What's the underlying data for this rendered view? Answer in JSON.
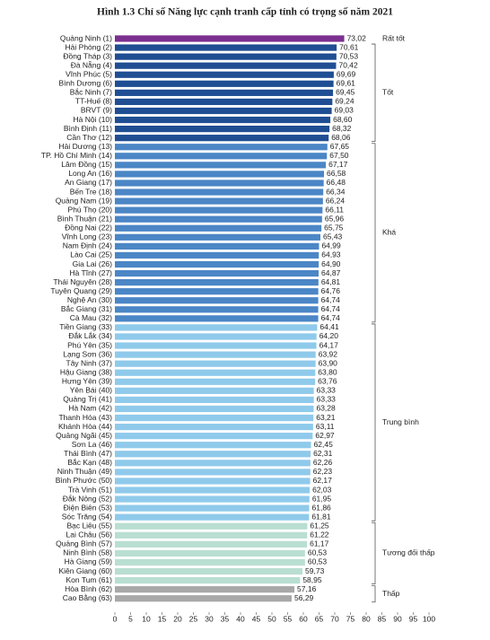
{
  "chart_data": {
    "type": "bar",
    "orientation": "horizontal",
    "title": "Hình 1.3 Chỉ số Năng lực cạnh tranh cấp tỉnh có trọng số năm 2021",
    "xlim": [
      0,
      100
    ],
    "xticks": [
      0,
      5,
      10,
      15,
      20,
      25,
      30,
      35,
      40,
      45,
      50,
      55,
      60,
      65,
      70,
      75,
      80,
      85,
      90,
      95,
      100
    ],
    "series": [
      {
        "name": "Rất tốt",
        "color": "#7b2f8f",
        "categories": [
          "Quảng Ninh (1)"
        ],
        "values": [
          73.02
        ],
        "value_labels": [
          "73,02"
        ]
      },
      {
        "name": "Tốt",
        "color": "#1f4e93",
        "categories": [
          "Hải Phòng (2)",
          "Đồng Tháp (3)",
          "Đà Nẵng (4)",
          "Vĩnh Phúc (5)",
          "Bình Dương (6)",
          "Bắc Ninh (7)",
          "TT-Huế (8)",
          "BRVT (9)",
          "Hà Nội (10)",
          "Bình Định (11)",
          "Cần Thơ (12)"
        ],
        "values": [
          70.61,
          70.53,
          70.42,
          69.69,
          69.61,
          69.45,
          69.24,
          69.03,
          68.6,
          68.32,
          68.06
        ],
        "value_labels": [
          "70,61",
          "70,53",
          "70,42",
          "69,69",
          "69,61",
          "69,45",
          "69,24",
          "69,03",
          "68,60",
          "68,32",
          "68,06"
        ]
      },
      {
        "name": "Khá",
        "color": "#4b86c6",
        "categories": [
          "Hải Dương (13)",
          "TP. Hồ Chí Minh (14)",
          "Lâm Đồng (15)",
          "Long An (16)",
          "An Giang (17)",
          "Bến Tre (18)",
          "Quảng Nam (19)",
          "Phú Thọ (20)",
          "Bình Thuận (21)",
          "Đồng Nai (22)",
          "Vĩnh Long (23)",
          "Nam Định (24)",
          "Lào Cai (25)",
          "Gia Lai (26)",
          "Hà Tĩnh (27)",
          "Thái Nguyên (28)",
          "Tuyên Quang (29)",
          "Nghệ An (30)",
          "Bắc Giang (31)",
          "Cà Mau (32)"
        ],
        "values": [
          67.65,
          67.5,
          67.17,
          66.58,
          66.48,
          66.34,
          66.24,
          66.11,
          65.96,
          65.75,
          65.43,
          64.99,
          64.93,
          64.9,
          64.87,
          64.81,
          64.76,
          64.74,
          64.74,
          64.74
        ],
        "value_labels": [
          "67,65",
          "67,50",
          "67,17",
          "66,58",
          "66,48",
          "66,34",
          "66,24",
          "66,11",
          "65,96",
          "65,75",
          "65,43",
          "64,99",
          "64,93",
          "64,90",
          "64,87",
          "64,81",
          "64,76",
          "64,74",
          "64,74",
          "64,74"
        ]
      },
      {
        "name": "Trung bình",
        "color": "#8fcaeb",
        "categories": [
          "Tiền Giang (33)",
          "Đắk Lắk (34)",
          "Phú Yên (35)",
          "Lạng Sơn (36)",
          "Tây Ninh (37)",
          "Hậu Giang (38)",
          "Hưng Yên (39)",
          "Yên Bái (40)",
          "Quảng Trị (41)",
          "Hà Nam (42)",
          "Thanh Hóa (43)",
          "Khánh Hòa (44)",
          "Quảng Ngãi (45)",
          "Sơn La (46)",
          "Thái Bình (47)",
          "Bắc Kạn (48)",
          "Ninh Thuận (49)",
          "Bình Phước (50)",
          "Trà Vinh (51)",
          "Đắk Nông (52)",
          "Điện Biên (53)",
          "Sóc Trăng (54)"
        ],
        "values": [
          64.41,
          64.2,
          64.17,
          63.92,
          63.9,
          63.8,
          63.76,
          63.33,
          63.33,
          63.28,
          63.21,
          63.11,
          62.97,
          62.45,
          62.31,
          62.26,
          62.23,
          62.17,
          62.03,
          61.95,
          61.86,
          61.81
        ],
        "value_labels": [
          "64,41",
          "64,20",
          "64,17",
          "63,92",
          "63,90",
          "63,80",
          "63,76",
          "63,33",
          "63,33",
          "63,28",
          "63,21",
          "63,11",
          "62,97",
          "62,45",
          "62,31",
          "62,26",
          "62,23",
          "62,17",
          "62,03",
          "61,95",
          "61,86",
          "61,81"
        ]
      },
      {
        "name": "Tương đối thấp",
        "color": "#b9ded2",
        "categories": [
          "Bạc Liêu (55)",
          "Lai Châu (56)",
          "Quảng Bình (57)",
          "Ninh Bình (58)",
          "Hà Giang (59)",
          "Kiên Giang (60)",
          "Kon Tum (61)"
        ],
        "values": [
          61.25,
          61.22,
          61.17,
          60.53,
          60.53,
          59.73,
          58.95
        ],
        "value_labels": [
          "61,25",
          "61,22",
          "61,17",
          "60,53",
          "60,53",
          "59,73",
          "58,95"
        ]
      },
      {
        "name": "Thấp",
        "color": "#a8a8a8",
        "categories": [
          "Hòa Bình (62)",
          "Cao Bằng (63)"
        ],
        "values": [
          57.16,
          56.29
        ],
        "value_labels": [
          "57,16",
          "56,29"
        ]
      }
    ]
  }
}
